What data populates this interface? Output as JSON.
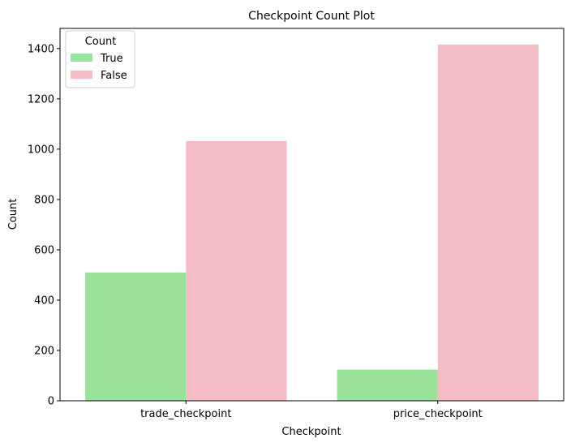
{
  "chart_data": {
    "type": "bar",
    "title": "Checkpoint Count Plot",
    "xlabel": "Checkpoint",
    "ylabel": "Count",
    "categories": [
      "trade_checkpoint",
      "price_checkpoint"
    ],
    "series": [
      {
        "name": "True",
        "values": [
          510,
          124
        ],
        "color": "#9be39b"
      },
      {
        "name": "False",
        "values": [
          1032,
          1416
        ],
        "color": "#f5bcc6"
      }
    ],
    "ylim": [
      0,
      1480
    ],
    "yticks": [
      0,
      200,
      400,
      600,
      800,
      1000,
      1200,
      1400
    ],
    "grid": false,
    "legend": {
      "title": "Count",
      "placement": "top-left"
    }
  }
}
